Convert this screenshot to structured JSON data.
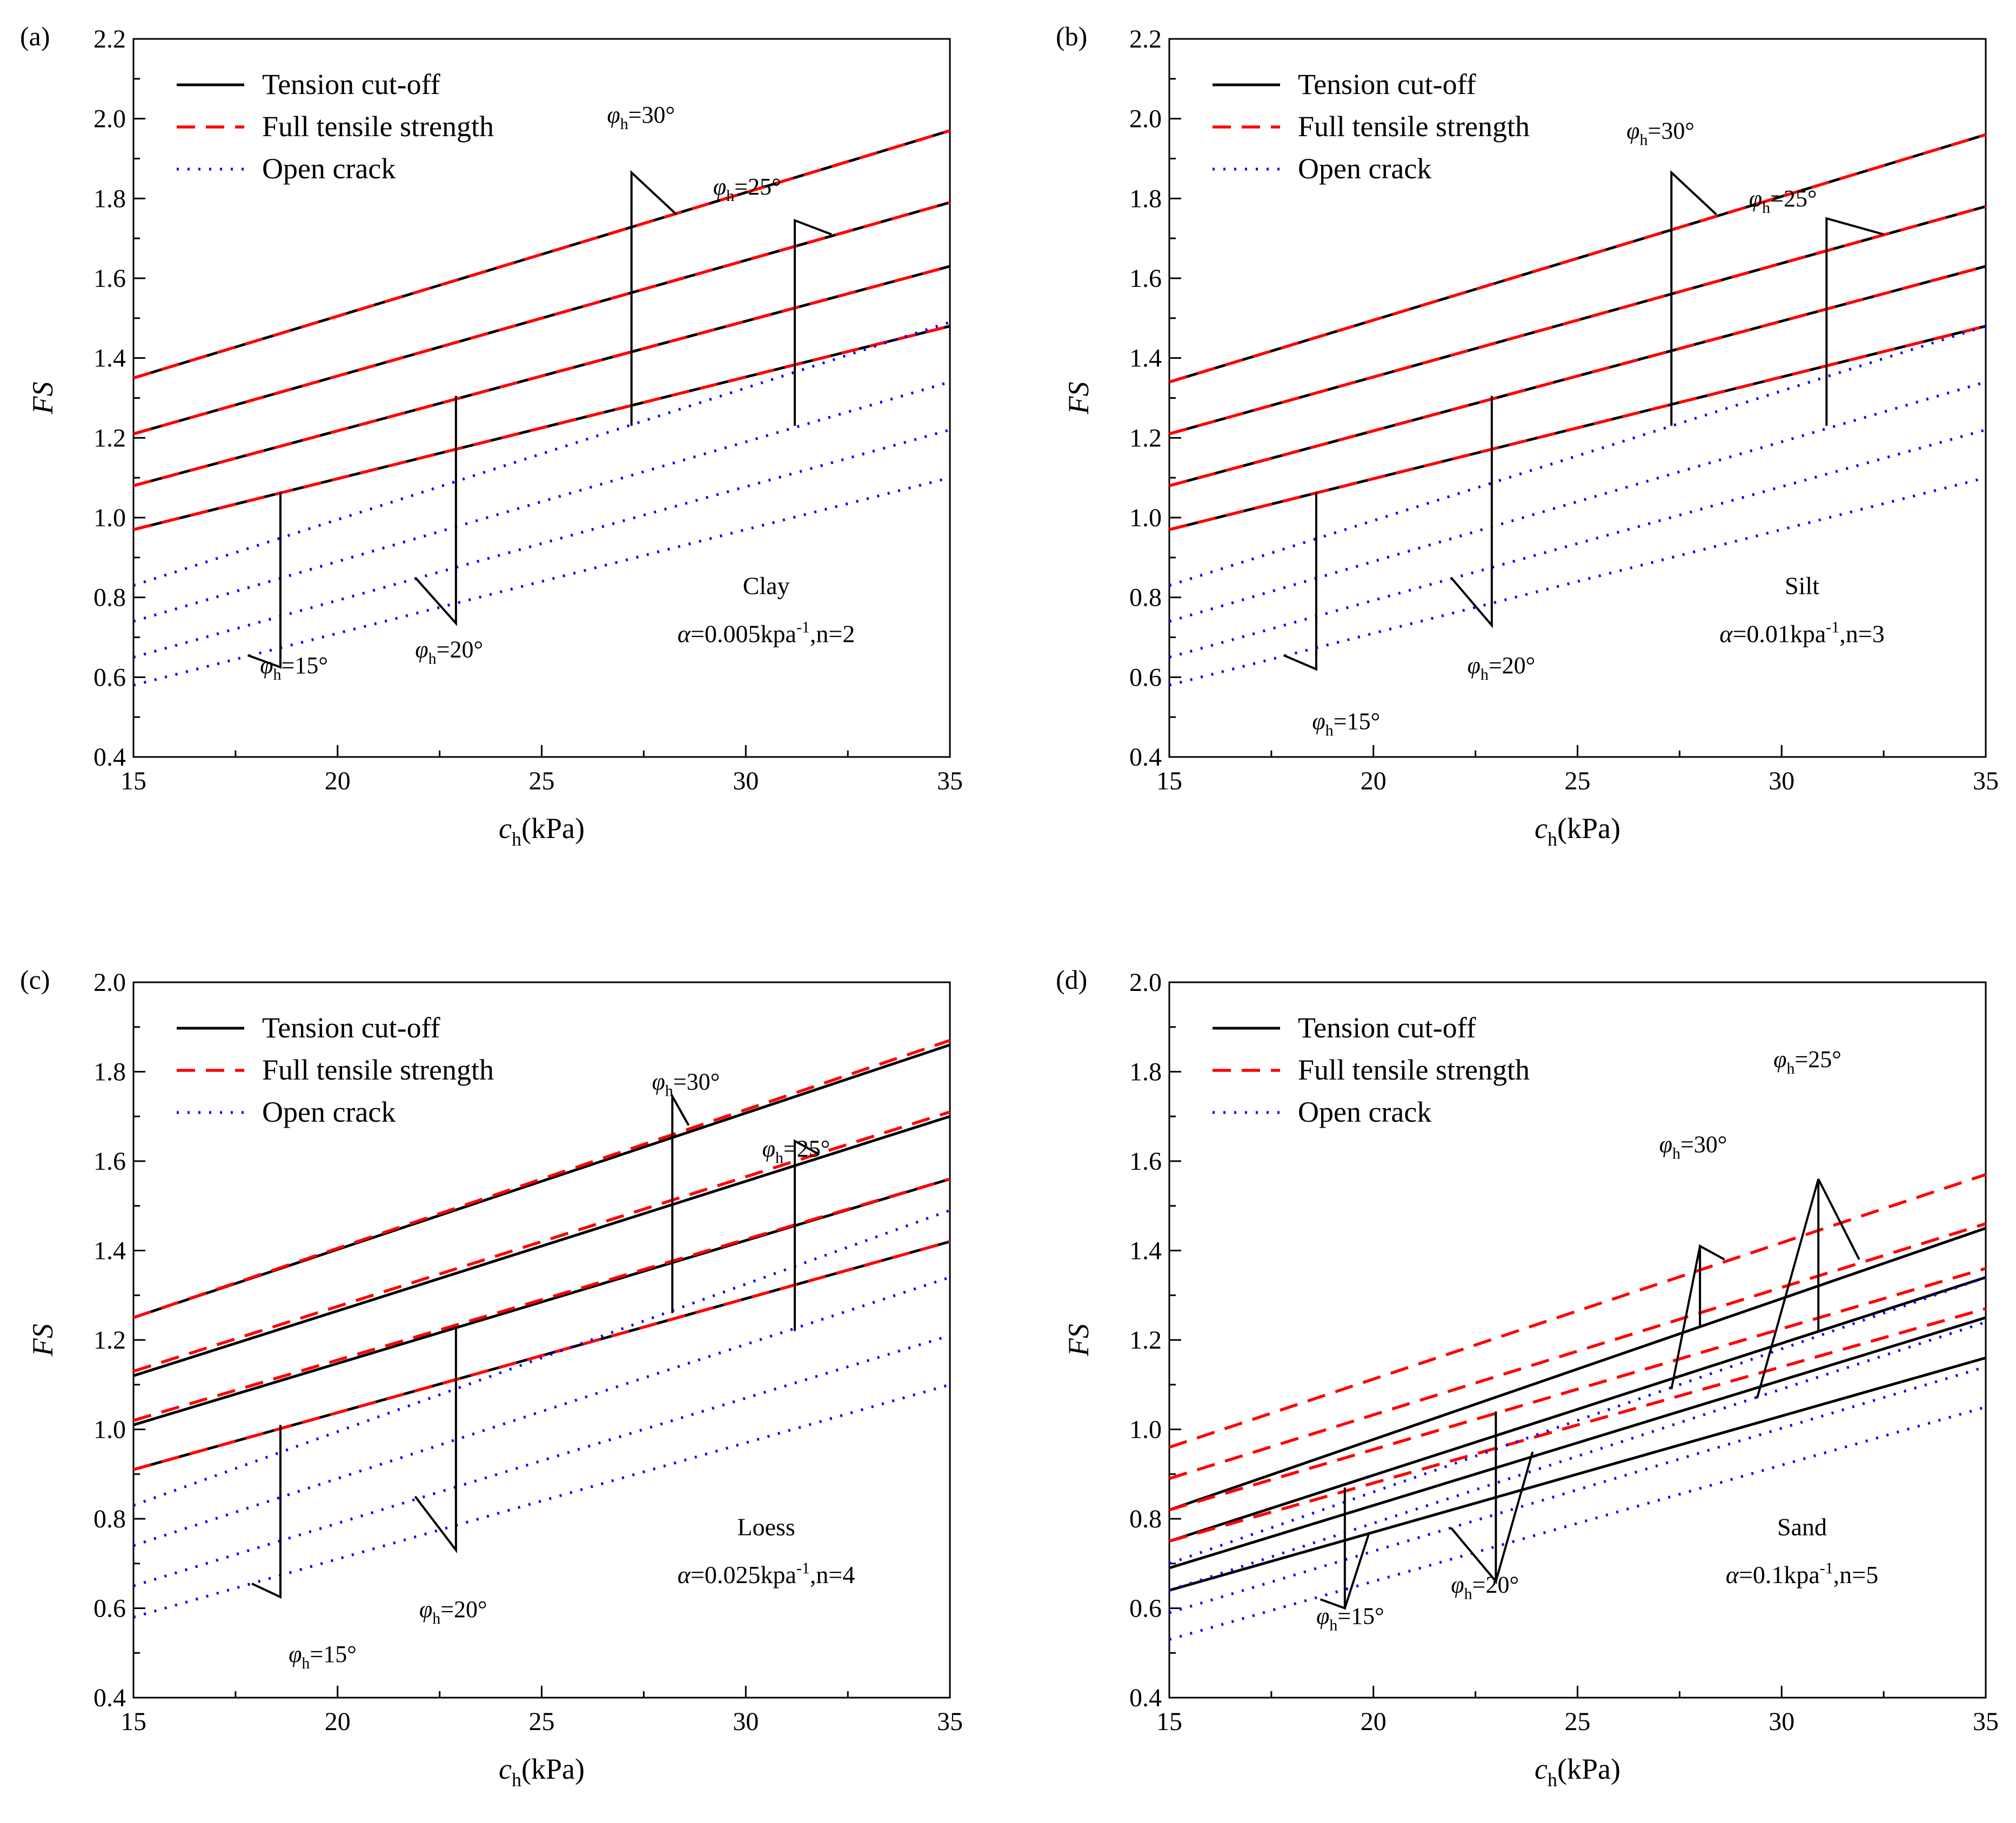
{
  "figure": {
    "description_free": true
  },
  "styles": {
    "tension_color": "#000000",
    "full_color": "#ff0000",
    "open_color": "#0000ff"
  },
  "chart_data": [
    {
      "type": "line",
      "panel_label": "(a)",
      "soil": "Clay",
      "params_prefix": "=0.005kpa",
      "params_suffix": ",n=2",
      "xlabel_main": "c",
      "xlabel_sub": "h",
      "xlabel_unit": "(kPa)",
      "ylabel": "FS",
      "xlim": [
        15,
        35
      ],
      "ylim": [
        0.4,
        2.2
      ],
      "xticks": [
        "15",
        "20",
        "25",
        "30",
        "35"
      ],
      "yticks": [
        "0.4",
        "0.6",
        "0.8",
        "1.0",
        "1.2",
        "1.4",
        "1.6",
        "1.8",
        "2.0",
        "2.2"
      ],
      "legend": [
        "Tension cut-off",
        "Full tensile strength",
        "Open crack"
      ],
      "series": [
        {
          "name": "Tension cut-off",
          "phi": 15,
          "x": [
            15,
            35
          ],
          "y": [
            0.97,
            1.48
          ]
        },
        {
          "name": "Tension cut-off",
          "phi": 20,
          "x": [
            15,
            35
          ],
          "y": [
            1.08,
            1.63
          ]
        },
        {
          "name": "Tension cut-off",
          "phi": 25,
          "x": [
            15,
            35
          ],
          "y": [
            1.21,
            1.79
          ]
        },
        {
          "name": "Tension cut-off",
          "phi": 30,
          "x": [
            15,
            35
          ],
          "y": [
            1.35,
            1.97
          ]
        },
        {
          "name": "Full tensile strength",
          "phi": 15,
          "x": [
            15,
            35
          ],
          "y": [
            0.97,
            1.48
          ]
        },
        {
          "name": "Full tensile strength",
          "phi": 20,
          "x": [
            15,
            35
          ],
          "y": [
            1.08,
            1.63
          ]
        },
        {
          "name": "Full tensile strength",
          "phi": 25,
          "x": [
            15,
            35
          ],
          "y": [
            1.21,
            1.79
          ]
        },
        {
          "name": "Full tensile strength",
          "phi": 30,
          "x": [
            15,
            35
          ],
          "y": [
            1.35,
            1.97
          ]
        },
        {
          "name": "Open crack",
          "phi": 15,
          "x": [
            15,
            35
          ],
          "y": [
            0.58,
            1.1
          ]
        },
        {
          "name": "Open crack",
          "phi": 20,
          "x": [
            15,
            35
          ],
          "y": [
            0.65,
            1.22
          ]
        },
        {
          "name": "Open crack",
          "phi": 25,
          "x": [
            15,
            35
          ],
          "y": [
            0.74,
            1.34
          ]
        },
        {
          "name": "Open crack",
          "phi": 30,
          "x": [
            15,
            35
          ],
          "y": [
            0.83,
            1.49
          ]
        }
      ],
      "annotations": [
        {
          "value": "15°",
          "tx": 18.1,
          "ty": 0.61,
          "line": [
            [
              17.8,
              0.655
            ],
            [
              18.6,
              0.625
            ],
            [
              18.6,
              1.065
            ]
          ]
        },
        {
          "value": "20°",
          "tx": 21.9,
          "ty": 0.65,
          "line": [
            [
              21.9,
              0.85
            ],
            [
              22.9,
              0.735
            ],
            [
              22.9,
              1.305
            ]
          ]
        },
        {
          "value": "25°",
          "tx": 29.2,
          "ty": 1.81,
          "line": [
            [
              32.1,
              1.71
            ],
            [
              31.2,
              1.745
            ],
            [
              31.2,
              1.23
            ]
          ]
        },
        {
          "value": "30°",
          "tx": 26.6,
          "ty": 1.99,
          "line": [
            [
              28.3,
              1.76
            ],
            [
              27.2,
              1.865
            ],
            [
              27.2,
              1.23
            ]
          ]
        }
      ]
    },
    {
      "type": "line",
      "panel_label": "(b)",
      "soil": "Silt",
      "params_prefix": "=0.01kpa",
      "params_suffix": ",n=3",
      "xlabel_main": "c",
      "xlabel_sub": "h",
      "xlabel_unit": "(kPa)",
      "ylabel": "FS",
      "xlim": [
        15,
        35
      ],
      "ylim": [
        0.4,
        2.2
      ],
      "xticks": [
        "15",
        "20",
        "25",
        "30",
        "35"
      ],
      "yticks": [
        "0.4",
        "0.6",
        "0.8",
        "1.0",
        "1.2",
        "1.4",
        "1.6",
        "1.8",
        "2.0",
        "2.2"
      ],
      "legend": [
        "Tension cut-off",
        "Full tensile strength",
        "Open crack"
      ],
      "series": [
        {
          "name": "Tension cut-off",
          "phi": 15,
          "x": [
            15,
            35
          ],
          "y": [
            0.97,
            1.48
          ]
        },
        {
          "name": "Tension cut-off",
          "phi": 20,
          "x": [
            15,
            35
          ],
          "y": [
            1.08,
            1.63
          ]
        },
        {
          "name": "Tension cut-off",
          "phi": 25,
          "x": [
            15,
            35
          ],
          "y": [
            1.21,
            1.78
          ]
        },
        {
          "name": "Tension cut-off",
          "phi": 30,
          "x": [
            15,
            35
          ],
          "y": [
            1.34,
            1.96
          ]
        },
        {
          "name": "Full tensile strength",
          "phi": 15,
          "x": [
            15,
            35
          ],
          "y": [
            0.97,
            1.48
          ]
        },
        {
          "name": "Full tensile strength",
          "phi": 20,
          "x": [
            15,
            35
          ],
          "y": [
            1.08,
            1.63
          ]
        },
        {
          "name": "Full tensile strength",
          "phi": 25,
          "x": [
            15,
            35
          ],
          "y": [
            1.21,
            1.78
          ]
        },
        {
          "name": "Full tensile strength",
          "phi": 30,
          "x": [
            15,
            35
          ],
          "y": [
            1.34,
            1.96
          ]
        },
        {
          "name": "Open crack",
          "phi": 15,
          "x": [
            15,
            35
          ],
          "y": [
            0.58,
            1.1
          ]
        },
        {
          "name": "Open crack",
          "phi": 20,
          "x": [
            15,
            35
          ],
          "y": [
            0.65,
            1.22
          ]
        },
        {
          "name": "Open crack",
          "phi": 25,
          "x": [
            15,
            35
          ],
          "y": [
            0.74,
            1.34
          ]
        },
        {
          "name": "Open crack",
          "phi": 30,
          "x": [
            15,
            35
          ],
          "y": [
            0.83,
            1.48
          ]
        }
      ],
      "annotations": [
        {
          "value": "15°",
          "tx": 18.5,
          "ty": 0.47,
          "line": [
            [
              17.8,
              0.655
            ],
            [
              18.6,
              0.62
            ],
            [
              18.6,
              1.065
            ]
          ]
        },
        {
          "value": "20°",
          "tx": 22.3,
          "ty": 0.61,
          "line": [
            [
              21.9,
              0.85
            ],
            [
              22.9,
              0.73
            ],
            [
              22.9,
              1.305
            ]
          ]
        },
        {
          "value": "25°",
          "tx": 29.2,
          "ty": 1.78,
          "line": [
            [
              32.5,
              1.71
            ],
            [
              31.1,
              1.75
            ],
            [
              31.1,
              1.23
            ]
          ]
        },
        {
          "value": "30°",
          "tx": 26.2,
          "ty": 1.95,
          "line": [
            [
              28.4,
              1.76
            ],
            [
              27.3,
              1.865
            ],
            [
              27.3,
              1.23
            ]
          ]
        }
      ]
    },
    {
      "type": "line",
      "panel_label": "(c)",
      "soil": "Loess",
      "params_prefix": "=0.025kpa",
      "params_suffix": ",n=4",
      "xlabel_main": "c",
      "xlabel_sub": "h",
      "xlabel_unit": "(kPa)",
      "ylabel": "FS",
      "xlim": [
        15,
        35
      ],
      "ylim": [
        0.4,
        2.0
      ],
      "xticks": [
        "15",
        "20",
        "25",
        "30",
        "35"
      ],
      "yticks": [
        "0.4",
        "0.6",
        "0.8",
        "1.0",
        "1.2",
        "1.4",
        "1.6",
        "1.8",
        "2.0"
      ],
      "legend": [
        "Tension cut-off",
        "Full tensile strength",
        "Open crack"
      ],
      "series": [
        {
          "name": "Tension cut-off",
          "phi": 15,
          "x": [
            15,
            35
          ],
          "y": [
            0.91,
            1.42
          ]
        },
        {
          "name": "Tension cut-off",
          "phi": 20,
          "x": [
            15,
            35
          ],
          "y": [
            1.01,
            1.56
          ]
        },
        {
          "name": "Tension cut-off",
          "phi": 25,
          "x": [
            15,
            35
          ],
          "y": [
            1.12,
            1.7
          ]
        },
        {
          "name": "Tension cut-off",
          "phi": 30,
          "x": [
            15,
            35
          ],
          "y": [
            1.25,
            1.86
          ]
        },
        {
          "name": "Full tensile strength",
          "phi": 15,
          "x": [
            15,
            35
          ],
          "y": [
            0.91,
            1.42
          ]
        },
        {
          "name": "Full tensile strength",
          "phi": 20,
          "x": [
            15,
            35
          ],
          "y": [
            1.02,
            1.56
          ]
        },
        {
          "name": "Full tensile strength",
          "phi": 25,
          "x": [
            15,
            35
          ],
          "y": [
            1.13,
            1.71
          ]
        },
        {
          "name": "Full tensile strength",
          "phi": 30,
          "x": [
            15,
            35
          ],
          "y": [
            1.25,
            1.87
          ]
        },
        {
          "name": "Open crack",
          "phi": 15,
          "x": [
            15,
            35
          ],
          "y": [
            0.58,
            1.1
          ]
        },
        {
          "name": "Open crack",
          "phi": 20,
          "x": [
            15,
            35
          ],
          "y": [
            0.65,
            1.21
          ]
        },
        {
          "name": "Open crack",
          "phi": 25,
          "x": [
            15,
            35
          ],
          "y": [
            0.74,
            1.34
          ]
        },
        {
          "name": "Open crack",
          "phi": 30,
          "x": [
            15,
            35
          ],
          "y": [
            0.83,
            1.49
          ]
        }
      ],
      "annotations": [
        {
          "value": "15°",
          "tx": 18.8,
          "ty": 0.48,
          "line": [
            [
              17.9,
              0.655
            ],
            [
              18.6,
              0.625
            ],
            [
              18.6,
              1.01
            ]
          ]
        },
        {
          "value": "20°",
          "tx": 22.0,
          "ty": 0.58,
          "line": [
            [
              21.9,
              0.85
            ],
            [
              22.9,
              0.73
            ],
            [
              22.9,
              1.23
            ]
          ]
        },
        {
          "value": "25°",
          "tx": 30.4,
          "ty": 1.61,
          "line": [
            [
              31.8,
              1.615
            ],
            [
              31.2,
              1.645
            ],
            [
              31.2,
              1.22
            ]
          ]
        },
        {
          "value": "30°",
          "tx": 27.7,
          "ty": 1.76,
          "line": [
            [
              28.6,
              1.68
            ],
            [
              28.2,
              1.745
            ],
            [
              28.2,
              1.26
            ]
          ]
        }
      ]
    },
    {
      "type": "line",
      "panel_label": "(d)",
      "soil": "Sand",
      "params_prefix": "=0.1kpa",
      "params_suffix": ",n=5",
      "xlabel_main": "c",
      "xlabel_sub": "h",
      "xlabel_unit": "(kPa)",
      "ylabel": "FS",
      "xlim": [
        15,
        35
      ],
      "ylim": [
        0.4,
        2.0
      ],
      "xticks": [
        "15",
        "20",
        "25",
        "30",
        "35"
      ],
      "yticks": [
        "0.4",
        "0.6",
        "0.8",
        "1.0",
        "1.2",
        "1.4",
        "1.6",
        "1.8",
        "2.0"
      ],
      "legend": [
        "Tension cut-off",
        "Full tensile strength",
        "Open crack"
      ],
      "series": [
        {
          "name": "Tension cut-off",
          "phi": 15,
          "x": [
            15,
            35
          ],
          "y": [
            0.64,
            1.16
          ]
        },
        {
          "name": "Tension cut-off",
          "phi": 20,
          "x": [
            15,
            35
          ],
          "y": [
            0.69,
            1.25
          ]
        },
        {
          "name": "Tension cut-off",
          "phi": 25,
          "x": [
            15,
            35
          ],
          "y": [
            0.75,
            1.34
          ]
        },
        {
          "name": "Tension cut-off",
          "phi": 30,
          "x": [
            15,
            35
          ],
          "y": [
            0.82,
            1.45
          ]
        },
        {
          "name": "Full tensile strength",
          "phi": 15,
          "x": [
            15,
            35
          ],
          "y": [
            0.75,
            1.27
          ]
        },
        {
          "name": "Full tensile strength",
          "phi": 20,
          "x": [
            15,
            35
          ],
          "y": [
            0.82,
            1.36
          ]
        },
        {
          "name": "Full tensile strength",
          "phi": 25,
          "x": [
            15,
            35
          ],
          "y": [
            0.89,
            1.46
          ]
        },
        {
          "name": "Full tensile strength",
          "phi": 30,
          "x": [
            15,
            35
          ],
          "y": [
            0.96,
            1.57
          ]
        },
        {
          "name": "Open crack",
          "phi": 15,
          "x": [
            15,
            35
          ],
          "y": [
            0.53,
            1.05
          ]
        },
        {
          "name": "Open crack",
          "phi": 20,
          "x": [
            15,
            35
          ],
          "y": [
            0.59,
            1.14
          ]
        },
        {
          "name": "Open crack",
          "phi": 25,
          "x": [
            15,
            35
          ],
          "y": [
            0.64,
            1.24
          ]
        },
        {
          "name": "Open crack",
          "phi": 30,
          "x": [
            15,
            35
          ],
          "y": [
            0.7,
            1.34
          ]
        }
      ],
      "annotations": [
        {
          "value": "15°",
          "tx": 18.6,
          "ty": 0.565,
          "line": [
            [
              18.7,
              0.62
            ],
            [
              19.3,
              0.6
            ],
            [
              19.3,
              0.87
            ]
          ],
          "line2": [
            [
              19.3,
              0.6
            ],
            [
              19.9,
              0.77
            ]
          ]
        },
        {
          "value": "20°",
          "tx": 21.9,
          "ty": 0.635,
          "line": [
            [
              21.9,
              0.78
            ],
            [
              23.0,
              0.66
            ],
            [
              23.0,
              1.04
            ]
          ],
          "line2": [
            [
              23.0,
              0.66
            ],
            [
              23.9,
              0.95
            ]
          ]
        },
        {
          "value": "25°",
          "tx": 29.8,
          "ty": 1.81,
          "line": [
            [
              31.9,
              1.38
            ],
            [
              30.9,
              1.56
            ],
            [
              30.9,
              1.22
            ]
          ],
          "line2": [
            [
              30.9,
              1.56
            ],
            [
              29.4,
              1.07
            ]
          ]
        },
        {
          "value": "30°",
          "tx": 27.0,
          "ty": 1.62,
          "line": [
            [
              28.6,
              1.38
            ],
            [
              28.0,
              1.41
            ],
            [
              28.0,
              1.23
            ]
          ],
          "line2": [
            [
              28.0,
              1.41
            ],
            [
              27.3,
              1.09
            ]
          ]
        }
      ]
    }
  ]
}
